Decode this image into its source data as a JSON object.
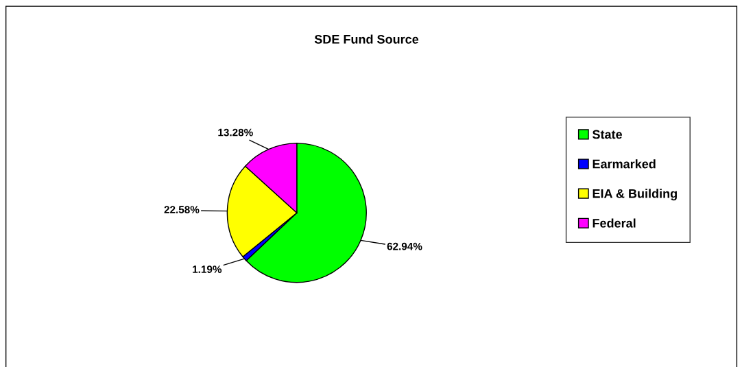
{
  "chart_data": {
    "type": "pie",
    "title": "SDE Fund Source",
    "categories": [
      "State",
      "Earmarked",
      "EIA & Building",
      "Federal"
    ],
    "values": [
      62.94,
      1.19,
      22.58,
      13.28
    ],
    "colors": [
      "#00ff00",
      "#0000ff",
      "#ffff00",
      "#ff00ff"
    ],
    "value_labels": [
      "62.94%",
      "1.19%",
      "22.58%",
      "13.28%"
    ],
    "legend": "right"
  }
}
